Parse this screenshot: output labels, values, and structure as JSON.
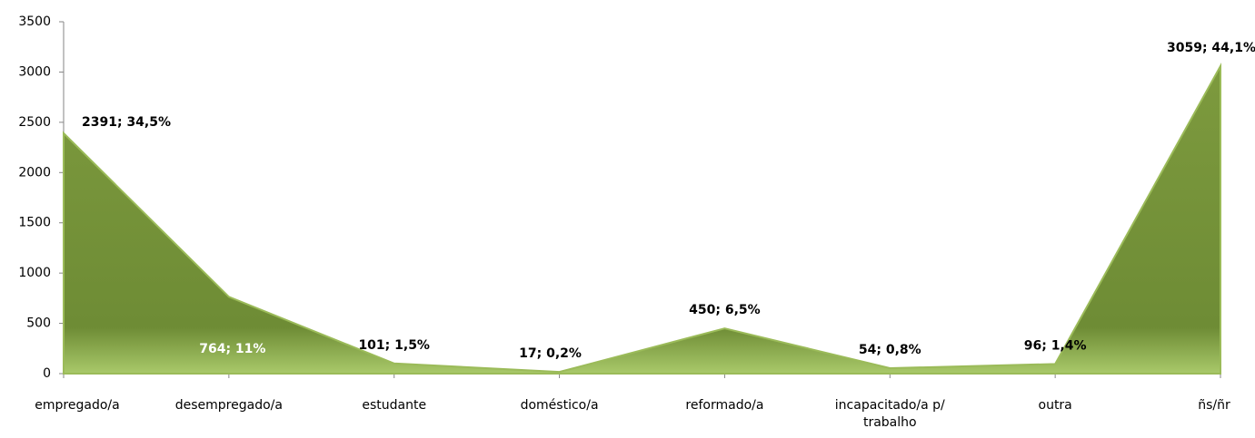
{
  "chart_data": {
    "type": "area",
    "categories": [
      "empregado/a",
      "desempregado/a",
      "estudante",
      "doméstico/a",
      "reformado/a",
      "incapacitado/a p/ trabalho",
      "outra",
      "ñs/ñr"
    ],
    "values": [
      2391,
      764,
      101,
      17,
      450,
      54,
      96,
      3059
    ],
    "value_labels": [
      "2391; 34,5%",
      "764; 11%",
      "101; 1,5%",
      "17; 0,2%",
      "450; 6,5%",
      "54; 0,8%",
      "96; 1,4%",
      "3059; 44,1%"
    ],
    "color": "#76923c",
    "ylim": [
      0,
      3500
    ],
    "yticks": [
      0,
      500,
      1000,
      1500,
      2000,
      2500,
      3000,
      3500
    ],
    "grid": false
  }
}
